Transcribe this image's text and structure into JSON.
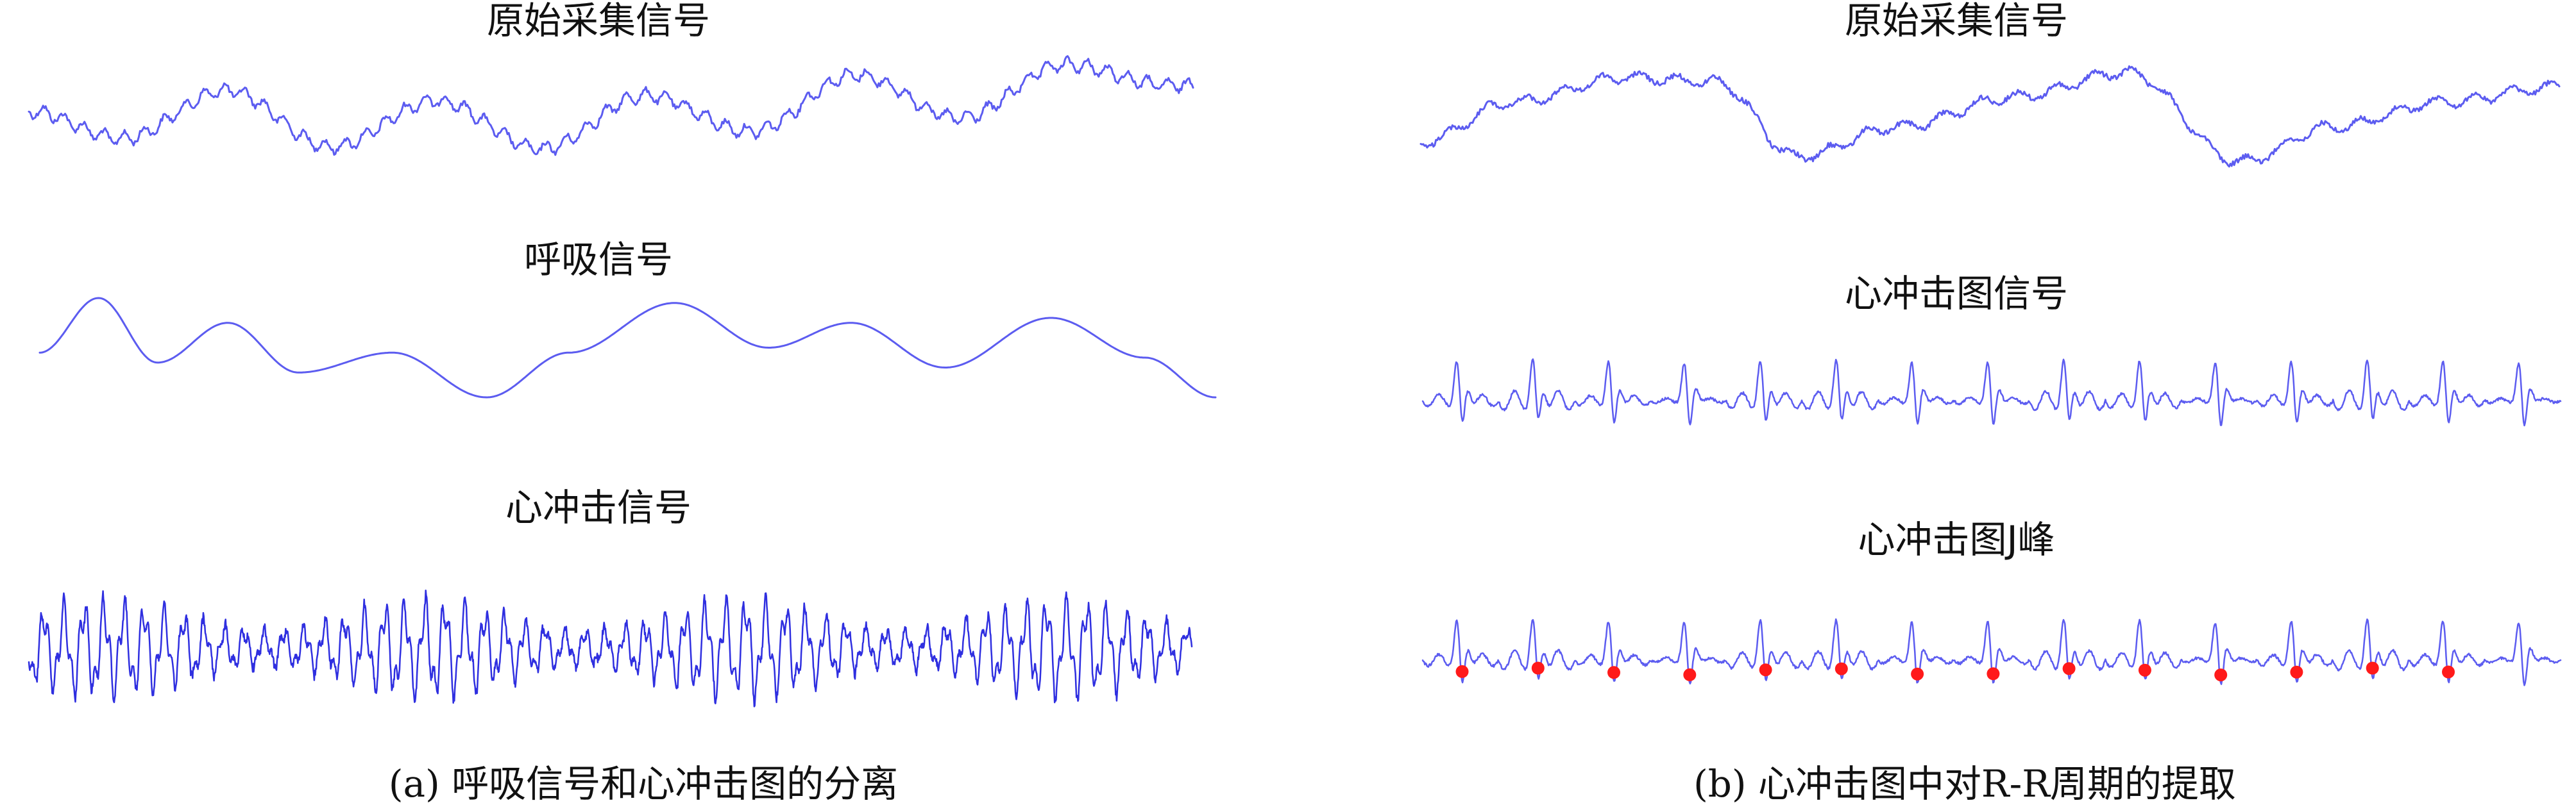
{
  "colors": {
    "signal": "#5c5cf0",
    "heartbeat": "#2f2fe0",
    "peak": "#ff1a1a",
    "text": "#111111"
  },
  "panel_a": {
    "caption": "(a) 呼吸信号和心冲击图的分离",
    "titles": [
      "原始采集信号",
      "呼吸信号",
      "心冲击信号"
    ]
  },
  "panel_b": {
    "caption": "(b) 心冲击图中对R-R周期的提取",
    "titles": [
      "原始采集信号",
      "心冲击图信号",
      "心冲击图J峰"
    ]
  },
  "chart_data": [
    {
      "type": "line",
      "panel": "a",
      "title": "原始采集信号",
      "description_points": "raw signal = respiration wave with superimposed heartbeat ripple",
      "x": [
        0,
        0.08,
        0.17,
        0.26,
        0.35,
        0.44,
        0.53,
        0.62,
        0.71,
        0.8,
        0.89,
        0.98
      ],
      "y": [
        0.55,
        0.82,
        0.35,
        0.9,
        0.45,
        0.92,
        0.4,
        0.75,
        0.2,
        0.62,
        0.1,
        0.3
      ]
    },
    {
      "type": "line",
      "panel": "a",
      "title": "呼吸信号",
      "x": [
        0,
        0.05,
        0.1,
        0.16,
        0.22,
        0.3,
        0.38,
        0.45,
        0.54,
        0.62,
        0.69,
        0.77,
        0.86,
        0.94,
        1.0
      ],
      "y": [
        0.55,
        0.0,
        0.65,
        0.25,
        0.75,
        0.55,
        1.0,
        0.55,
        0.05,
        0.5,
        0.25,
        0.7,
        0.2,
        0.6,
        1.0
      ]
    },
    {
      "type": "line",
      "panel": "a",
      "title": "心冲击信号",
      "cycles": 58
    },
    {
      "type": "line",
      "panel": "b",
      "title": "原始采集信号",
      "x": [
        0,
        0.08,
        0.18,
        0.26,
        0.33,
        0.42,
        0.52,
        0.62,
        0.72,
        0.8,
        0.9,
        1.0
      ],
      "y": [
        0.75,
        0.35,
        0.1,
        0.15,
        0.9,
        0.6,
        0.3,
        0.05,
        0.95,
        0.6,
        0.35,
        0.2
      ]
    },
    {
      "type": "line",
      "panel": "b",
      "title": "心冲击图信号",
      "beats": 15
    },
    {
      "type": "scatter",
      "panel": "b",
      "title": "心冲击图J峰",
      "beats": 15,
      "j_peaks": 14
    }
  ]
}
